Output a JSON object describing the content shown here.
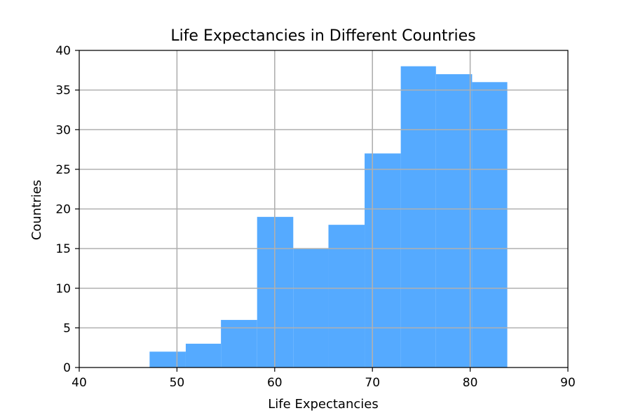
{
  "chart_data": {
    "type": "bar",
    "title": "Life Expectancies in Different Countries",
    "xlabel": "Life Expectancies",
    "ylabel": "Countries",
    "xlim": [
      40,
      90
    ],
    "ylim": [
      0,
      40
    ],
    "xticks": [
      "40",
      "50",
      "60",
      "70",
      "80",
      "90"
    ],
    "yticks": [
      "0",
      "5",
      "10",
      "15",
      "20",
      "25",
      "30",
      "35",
      "40"
    ],
    "grid": true,
    "bar_color": "#55aaff",
    "bins": [
      {
        "x0": 47.2,
        "x1": 50.9,
        "count": 2
      },
      {
        "x0": 50.9,
        "x1": 54.5,
        "count": 3
      },
      {
        "x0": 54.5,
        "x1": 58.2,
        "count": 6
      },
      {
        "x0": 58.2,
        "x1": 61.9,
        "count": 19
      },
      {
        "x0": 61.9,
        "x1": 65.5,
        "count": 15
      },
      {
        "x0": 65.5,
        "x1": 69.2,
        "count": 18
      },
      {
        "x0": 69.2,
        "x1": 72.9,
        "count": 27
      },
      {
        "x0": 72.9,
        "x1": 76.5,
        "count": 38
      },
      {
        "x0": 76.5,
        "x1": 80.2,
        "count": 37
      },
      {
        "x0": 80.2,
        "x1": 83.8,
        "count": 36
      }
    ]
  }
}
